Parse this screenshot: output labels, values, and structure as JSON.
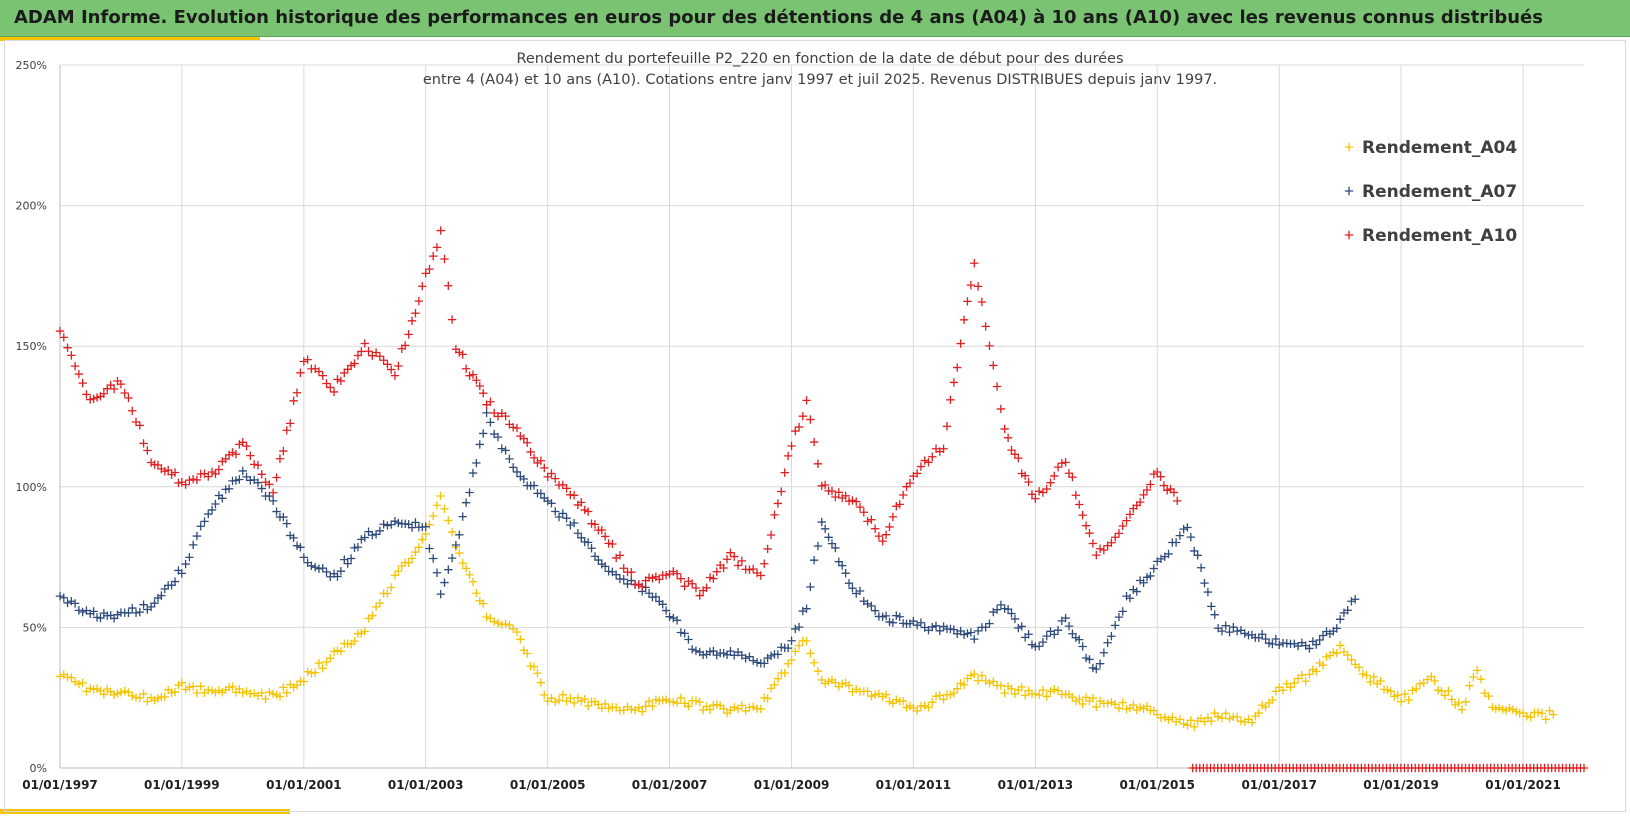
{
  "banner": {
    "title": "ADAM Informe. Evolution historique des performances en euros pour des détentions de 4 ans (A04) à 10 ans (A10) avec les revenus connus distribués"
  },
  "colors": {
    "banner_bg": "#7ac373",
    "accent": "#f5c300",
    "grid": "#d9d9d9",
    "axis_text": "#404040",
    "title_text": "#404040"
  },
  "chart_data": {
    "type": "scatter",
    "title_line1": "Rendement du portefeuille P2_220 en fonction de la date de début pour des durées",
    "title_line2": "entre 4 (A04) et 10 ans (A10). Cotations  entre janv 1997 et juil 2025. Revenus DISTRIBUES depuis janv 1997.",
    "xlabel": "",
    "ylabel": "",
    "x_ticks": [
      "01/01/1997",
      "01/01/1999",
      "01/01/2001",
      "01/01/2003",
      "01/01/2005",
      "01/01/2007",
      "01/01/2009",
      "01/01/2011",
      "01/01/2013",
      "01/01/2015",
      "01/01/2017",
      "01/01/2019",
      "01/01/2021"
    ],
    "y_ticks": [
      "0%",
      "50%",
      "100%",
      "150%",
      "200%",
      "250%"
    ],
    "xlim": [
      "1997-01-01",
      "2022-01-01"
    ],
    "ylim": [
      0,
      250
    ],
    "grid": true,
    "marker": "+",
    "legend_position": "top-right",
    "series": [
      {
        "name": "Rendement_A04",
        "color": "#f5c300",
        "x": [
          "1997-01",
          "1997-07",
          "1998-01",
          "1998-07",
          "1999-01",
          "1999-07",
          "2000-01",
          "2000-07",
          "2001-01",
          "2001-07",
          "2002-01",
          "2002-07",
          "2003-01",
          "2003-04",
          "2003-07",
          "2004-01",
          "2004-07",
          "2005-01",
          "2005-07",
          "2006-01",
          "2006-07",
          "2007-01",
          "2007-07",
          "2008-01",
          "2008-07",
          "2009-01",
          "2009-04",
          "2009-07",
          "2010-01",
          "2010-07",
          "2011-01",
          "2011-07",
          "2012-01",
          "2012-07",
          "2013-01",
          "2013-07",
          "2014-01",
          "2014-07",
          "2015-01",
          "2015-07",
          "2016-01",
          "2016-07",
          "2017-01",
          "2017-07",
          "2018-01",
          "2018-07",
          "2019-01",
          "2019-07",
          "2020-01",
          "2020-04",
          "2020-07",
          "2021-01",
          "2021-07"
        ],
        "y": [
          34,
          28,
          26,
          25,
          29,
          27,
          28,
          25,
          32,
          40,
          50,
          68,
          82,
          98,
          78,
          55,
          48,
          25,
          24,
          22,
          21,
          25,
          22,
          21,
          22,
          38,
          46,
          31,
          28,
          25,
          21,
          25,
          33,
          28,
          27,
          26,
          23,
          22,
          20,
          15,
          19,
          16,
          28,
          33,
          42,
          32,
          24,
          31,
          22,
          34,
          22,
          18,
          19
        ]
      },
      {
        "name": "Rendement_A07",
        "color": "#2f4b7c",
        "x": [
          "1997-01",
          "1997-07",
          "1998-01",
          "1998-07",
          "1999-01",
          "1999-07",
          "2000-01",
          "2000-07",
          "2001-01",
          "2001-07",
          "2002-01",
          "2002-07",
          "2003-01",
          "2003-04",
          "2003-07",
          "2004-01",
          "2004-07",
          "2005-01",
          "2005-07",
          "2006-01",
          "2006-07",
          "2007-01",
          "2007-07",
          "2008-01",
          "2008-07",
          "2009-01",
          "2009-04",
          "2009-07",
          "2010-01",
          "2010-07",
          "2011-01",
          "2011-07",
          "2012-01",
          "2012-07",
          "2013-01",
          "2013-07",
          "2014-01",
          "2014-07",
          "2015-01",
          "2015-07",
          "2016-01",
          "2016-07",
          "2017-01",
          "2017-07",
          "2018-01",
          "2018-04"
        ],
        "y": [
          60,
          55,
          54,
          58,
          70,
          93,
          105,
          95,
          75,
          68,
          82,
          88,
          85,
          63,
          78,
          125,
          105,
          94,
          85,
          70,
          65,
          55,
          40,
          42,
          38,
          45,
          58,
          88,
          64,
          54,
          51,
          50,
          47,
          58,
          43,
          52,
          35,
          60,
          72,
          87,
          50,
          47,
          45,
          43,
          52,
          60
        ]
      },
      {
        "name": "Rendement_A10",
        "color": "#e02020",
        "x": [
          "1997-01",
          "1997-07",
          "1998-01",
          "1998-07",
          "1999-01",
          "1999-07",
          "2000-01",
          "2000-07",
          "2001-01",
          "2001-07",
          "2002-01",
          "2002-07",
          "2003-01",
          "2003-04",
          "2003-07",
          "2004-01",
          "2004-07",
          "2005-01",
          "2005-07",
          "2006-01",
          "2006-07",
          "2007-01",
          "2007-07",
          "2008-01",
          "2008-07",
          "2009-01",
          "2009-04",
          "2009-07",
          "2010-01",
          "2010-07",
          "2011-01",
          "2011-07",
          "2012-01",
          "2012-07",
          "2013-01",
          "2013-07",
          "2014-01",
          "2014-07",
          "2015-01",
          "2015-05"
        ],
        "y": [
          155,
          130,
          138,
          110,
          102,
          105,
          115,
          98,
          145,
          135,
          150,
          140,
          175,
          190,
          150,
          130,
          120,
          105,
          95,
          80,
          65,
          70,
          62,
          75,
          68,
          115,
          130,
          100,
          95,
          82,
          105,
          115,
          180,
          120,
          95,
          110,
          75,
          87,
          105,
          95
        ]
      },
      {
        "name": "",
        "color": "#e02020",
        "x": [
          "2015-08",
          "2022-01"
        ],
        "y": [
          0,
          0
        ]
      }
    ]
  }
}
